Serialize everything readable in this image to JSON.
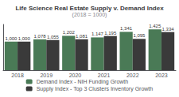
{
  "chart_data": {
    "type": "bar",
    "title": "Life Science Real Estate Supply v. Demand Index",
    "subtitle": "(2018 = 1000)",
    "categories": [
      "2018",
      "2019",
      "2020",
      "2021",
      "2022",
      "2023"
    ],
    "series": [
      {
        "name": "Demand Index - NIH Funding Growth",
        "color": "#4a7a56",
        "values": [
          1000,
          1078,
          1202,
          1147,
          1341,
          1425
        ],
        "value_labels": [
          "1,000",
          "1,078",
          "1,202",
          "1,147",
          "1,341",
          "1,425"
        ]
      },
      {
        "name": "Supply Index - Top 3 Clusters Inventory Growth",
        "color": "#3a3a3a",
        "values": [
          1000,
          1055,
          1081,
          1195,
          1095,
          1334
        ],
        "value_labels": [
          "1,000",
          "1,055",
          "1,081",
          "1,195",
          "1,095",
          "1,334"
        ]
      }
    ],
    "ylim": [
      0,
      1600
    ],
    "grid": false,
    "legend": "bottom",
    "data_labels": true,
    "tick_labels": "x"
  }
}
